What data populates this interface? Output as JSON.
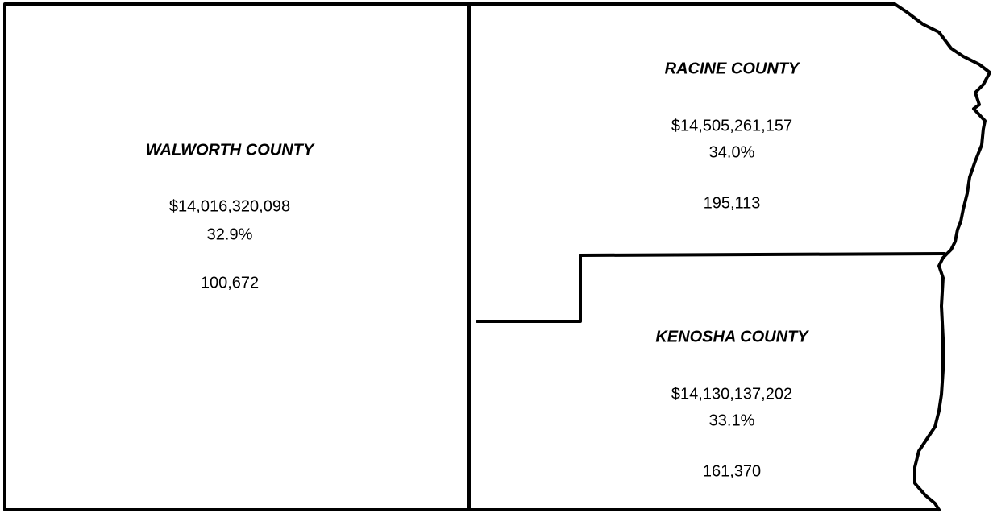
{
  "counties": [
    {
      "name": "WALWORTH COUNTY",
      "value": "$14,016,320,098",
      "share": "32.9%",
      "population": "100,672"
    },
    {
      "name": "RACINE COUNTY",
      "value": "$14,505,261,157",
      "share": "34.0%",
      "population": "195,113"
    },
    {
      "name": "KENOSHA COUNTY",
      "value": "$14,130,137,202",
      "share": "33.1%",
      "population": "161,370"
    }
  ]
}
